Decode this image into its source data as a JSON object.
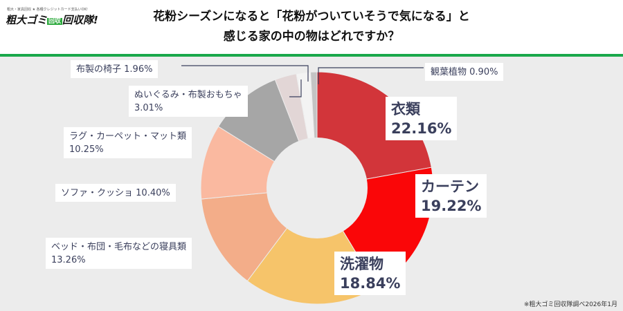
{
  "logo": {
    "tagline": "粗大・家具回収 ★ 各種クレジットカード支払いOK!",
    "name": "粗大ゴミ",
    "badge": "回収",
    "name_tail": "回収隊!"
  },
  "title": {
    "line1": "花粉シーズンになると「花粉がついていそうで気になる」と",
    "line2": "感じる家の中の物はどれですか？"
  },
  "colors": {
    "accent_rule": "#19a84b",
    "label_text": "#3a3f5c"
  },
  "chart_data": {
    "type": "pie",
    "donut": true,
    "start": "12 o'clock, clockwise",
    "slices": [
      {
        "name": "衣類",
        "value": 22.16,
        "label": "22.16%",
        "color": "#d2353a"
      },
      {
        "name": "カーテン",
        "value": 19.22,
        "label": "19.22%",
        "color": "#fa0608"
      },
      {
        "name": "洗濯物",
        "value": 18.84,
        "label": "18.84%",
        "color": "#f6c46a"
      },
      {
        "name": "ベッド・布団・毛布などの寝具類",
        "value": 13.26,
        "label": "13.26%",
        "color": "#f3ad89"
      },
      {
        "name": "ソファ・クッショ",
        "value": 10.4,
        "label": "10.40%",
        "color": "#fab9a0"
      },
      {
        "name": "ラグ・カーペット・マット類",
        "value": 10.25,
        "label": "10.25%",
        "color": "#a6a6a6"
      },
      {
        "name": "ぬいぐるみ・布製おもちゃ",
        "value": 3.01,
        "label": "3.01%",
        "color": "#e2d6d6"
      },
      {
        "name": "布製の椅子",
        "value": 1.96,
        "label": "1.96%",
        "color": "#f3f3f3"
      },
      {
        "name": "観葉植物",
        "value": 0.9,
        "label": "0.90%",
        "color": "#c4c4c4"
      }
    ]
  },
  "footnote": "※粗大ゴミ回収隊調べ2026年1月"
}
